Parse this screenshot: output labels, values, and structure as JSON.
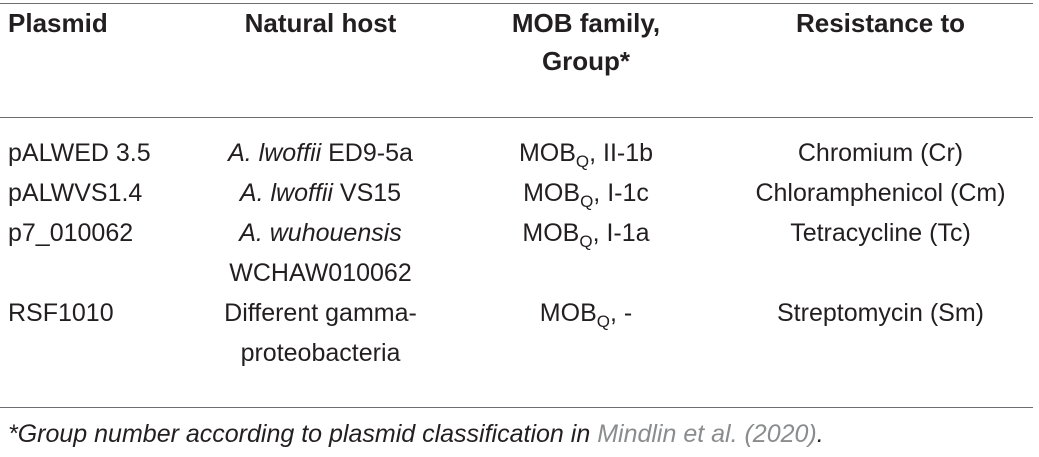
{
  "table": {
    "headers": {
      "plasmid": "Plasmid",
      "natural_host": "Natural host",
      "mob_line1": "MOB family,",
      "mob_line2": "Group*",
      "resistance": "Resistance to"
    },
    "rows": [
      {
        "plasmid": "pALWED 3.5",
        "host_italic": "A. lwoffii",
        "host_rest": " ED9-5a",
        "host_line2": "",
        "mob_base": "MOB",
        "mob_sub": "Q",
        "mob_rest": ", II-1b",
        "resistance": "Chromium (Cr)"
      },
      {
        "plasmid": "pALWVS1.4",
        "host_italic": "A. lwoffii",
        "host_rest": " VS15",
        "host_line2": "",
        "mob_base": "MOB",
        "mob_sub": "Q",
        "mob_rest": ", I-1c",
        "resistance": "Chloramphenicol (Cm)"
      },
      {
        "plasmid": "p7_010062",
        "host_italic": "A. wuhouensis",
        "host_rest": "",
        "host_line2": "WCHAW010062",
        "mob_base": "MOB",
        "mob_sub": "Q",
        "mob_rest": ", I-1a",
        "resistance": "Tetracycline (Tc)"
      },
      {
        "plasmid": "RSF1010",
        "host_italic": "",
        "host_rest": "Different gamma-",
        "host_line2": "proteobacteria",
        "mob_base": "MOB",
        "mob_sub": "Q",
        "mob_rest": ", -",
        "resistance": "Streptomycin (Sm)"
      }
    ]
  },
  "footnote": {
    "text": "*Group number according to plasmid classification in ",
    "citation": "Mindlin et al. (2020)",
    "end": "."
  }
}
